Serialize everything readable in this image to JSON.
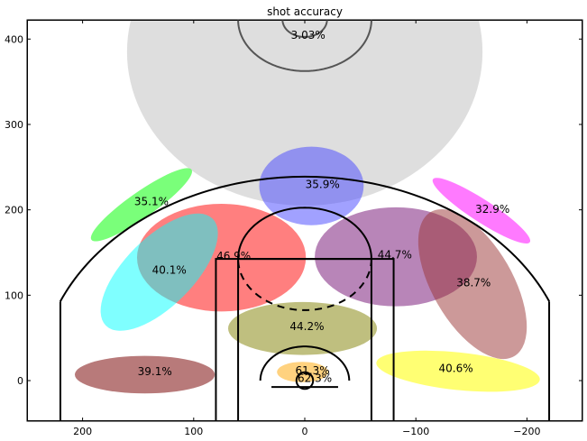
{
  "chart_data": {
    "type": "scatter",
    "title": "shot accuracy",
    "xlabel": "",
    "ylabel": "",
    "xlim": [
      250,
      -250
    ],
    "ylim": [
      -47.5,
      422.5
    ],
    "x_ticks": [
      200,
      100,
      0,
      -100,
      -200
    ],
    "x_tick_labels": [
      "200",
      "100",
      "0",
      "−100",
      "−200"
    ],
    "y_ticks": [
      0,
      100,
      200,
      300,
      400
    ],
    "y_tick_labels": [
      "0",
      "100",
      "200",
      "300",
      "400"
    ],
    "grid": false,
    "zones": [
      {
        "label": "3.03%",
        "value": 3.03,
        "cx": 0,
        "cy": 385,
        "rx": 160,
        "ry": 180,
        "angle": 0,
        "color": "#c8c8c8",
        "alpha": 0.6,
        "label_x": -3,
        "label_y": 404
      },
      {
        "label": "35.9%",
        "value": 35.9,
        "cx": -6,
        "cy": 228,
        "rx": 47,
        "ry": 46,
        "angle": 0,
        "color": "#4444ff",
        "alpha": 0.5,
        "label_x": -16,
        "label_y": 229
      },
      {
        "label": "35.1%",
        "value": 35.1,
        "cx": 147,
        "cy": 206,
        "rx": 55,
        "ry": 15,
        "angle": -35,
        "color": "#22ff22",
        "alpha": 0.6,
        "label_x": 138,
        "label_y": 209
      },
      {
        "label": "32.9%",
        "value": 32.9,
        "cx": -159,
        "cy": 199,
        "rx": 52,
        "ry": 13,
        "angle": 33,
        "color": "#ff22ff",
        "alpha": 0.6,
        "label_x": -169,
        "label_y": 200
      },
      {
        "label": "46.9%",
        "value": 46.9,
        "cx": 75,
        "cy": 144,
        "rx": 76,
        "ry": 63,
        "angle": 0,
        "color": "#ff0000",
        "alpha": 0.5,
        "label_x": 64,
        "label_y": 145
      },
      {
        "label": "44.7%",
        "value": 44.7,
        "cx": -82,
        "cy": 145,
        "rx": 73,
        "ry": 58,
        "angle": 0,
        "color": "#883388",
        "alpha": 0.6,
        "label_x": -81,
        "label_y": 147
      },
      {
        "label": "40.1%",
        "value": 40.1,
        "cx": 131,
        "cy": 127,
        "rx": 68,
        "ry": 40,
        "angle": -45,
        "color": "#00ffff",
        "alpha": 0.5,
        "label_x": 122,
        "label_y": 129
      },
      {
        "label": "38.7%",
        "value": 38.7,
        "cx": -151,
        "cy": 113,
        "rx": 75,
        "ry": 47,
        "angle": 60,
        "color": "#993333",
        "alpha": 0.5,
        "label_x": -152,
        "label_y": 114
      },
      {
        "label": "44.2%",
        "value": 44.2,
        "cx": 2,
        "cy": 61,
        "rx": 67,
        "ry": 31,
        "angle": 0,
        "color": "#808000",
        "alpha": 0.5,
        "label_x": -2,
        "label_y": 63
      },
      {
        "label": "39.1%",
        "value": 39.1,
        "cx": 144,
        "cy": 7,
        "rx": 63,
        "ry": 22,
        "angle": 0,
        "color": "#882222",
        "alpha": 0.6,
        "label_x": 135,
        "label_y": 10
      },
      {
        "label": "40.6%",
        "value": 40.6,
        "cx": -138,
        "cy": 11,
        "rx": 74,
        "ry": 22,
        "angle": 6,
        "color": "#ffff00",
        "alpha": 0.55,
        "label_x": -136,
        "label_y": 14
      },
      {
        "label": "61.3%",
        "value": 61.3,
        "cx": 2,
        "cy": 10,
        "rx": 23,
        "ry": 12,
        "angle": 0,
        "color": "#ffa500",
        "alpha": 0.5,
        "label_x": -7,
        "label_y": 11
      },
      {
        "label": "62.3%",
        "value": 62.3,
        "cx": 0,
        "cy": 0,
        "rx": 0,
        "ry": 0,
        "angle": 0,
        "color": "#ffa500",
        "alpha": 0.0,
        "label_x": -9,
        "label_y": 2
      }
    ]
  }
}
